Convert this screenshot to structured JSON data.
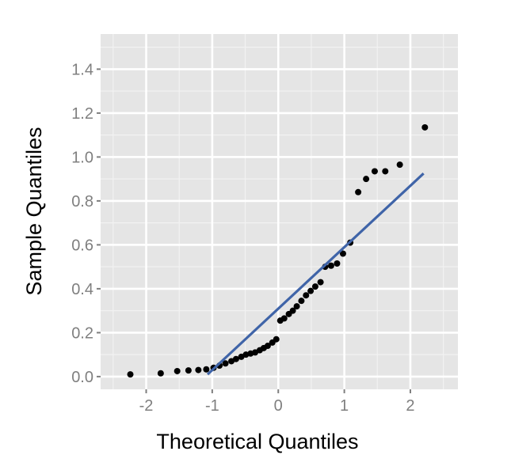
{
  "chart_data": {
    "type": "scatter",
    "title": "",
    "xlabel": "Theoretical Quantiles",
    "ylabel": "Sample Quantiles",
    "xlim": [
      -2.69,
      2.72
    ],
    "ylim": [
      -0.058,
      1.56
    ],
    "xticks": [
      -2,
      -1,
      0,
      1,
      2
    ],
    "xtick_labels": [
      "-2",
      "-1",
      "0",
      "1",
      "2"
    ],
    "yticks": [
      0,
      0.2,
      0.4,
      0.6,
      0.8,
      1.0,
      1.2,
      1.4
    ],
    "ytick_labels": [
      "0.0",
      "0.2",
      "0.4",
      "0.6",
      "0.8",
      "1.0",
      "1.2",
      "1.4"
    ],
    "grid": true,
    "background": "#e5e5e5",
    "point_color": "#000000",
    "line_color": "#3f64a8",
    "points": {
      "x": [
        -2.24,
        -1.78,
        -1.53,
        -1.36,
        -1.21,
        -1.09,
        -0.98,
        -0.89,
        -0.8,
        -0.71,
        -0.64,
        -0.56,
        -0.49,
        -0.42,
        -0.35,
        -0.28,
        -0.22,
        -0.16,
        -0.09,
        -0.03,
        0.03,
        0.09,
        0.16,
        0.22,
        0.28,
        0.35,
        0.42,
        0.49,
        0.56,
        0.64,
        0.71,
        0.8,
        0.89,
        0.98,
        1.09,
        1.21,
        1.33,
        1.46,
        1.62,
        1.84,
        2.22
      ],
      "y": [
        0.01,
        0.015,
        0.025,
        0.028,
        0.03,
        0.033,
        0.04,
        0.05,
        0.06,
        0.07,
        0.08,
        0.09,
        0.1,
        0.105,
        0.11,
        0.12,
        0.13,
        0.14,
        0.155,
        0.17,
        0.255,
        0.265,
        0.285,
        0.3,
        0.32,
        0.345,
        0.37,
        0.39,
        0.41,
        0.43,
        0.5,
        0.505,
        0.515,
        0.56,
        0.61,
        0.84,
        0.9,
        0.935,
        0.935,
        0.965,
        1.135
      ]
    },
    "reference_line": {
      "x": [
        -1.07,
        2.2
      ],
      "y": [
        0.01,
        0.925
      ]
    }
  }
}
